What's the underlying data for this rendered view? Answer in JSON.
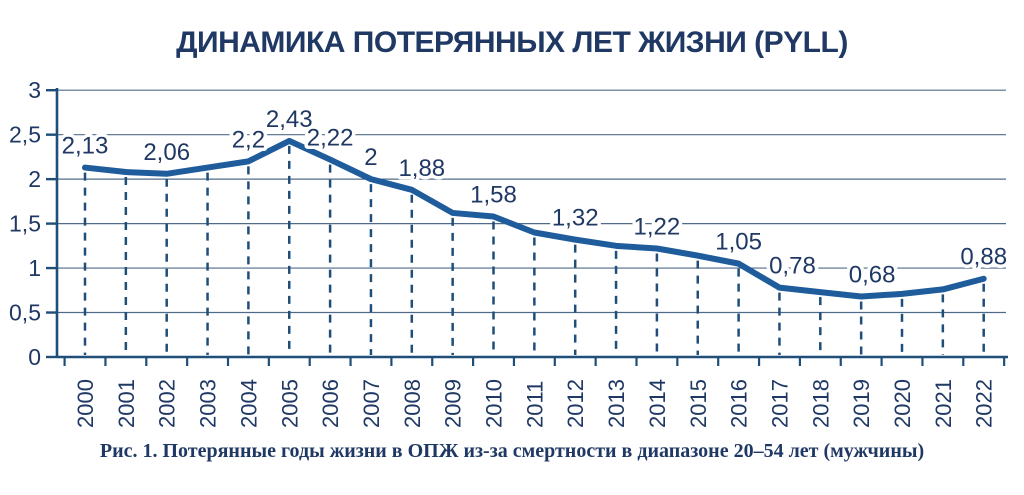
{
  "title": "ДИНАМИКА ПОТЕРЯННЫХ ЛЕТ ЖИЗНИ (PYLL)",
  "caption": "Рис. 1. Потерянные годы жизни в ОПЖ из-за смертности в диапазоне 20–54 лет (мужчины)",
  "chart_data": {
    "type": "line",
    "title": "ДИНАМИКА ПОТЕРЯННЫХ ЛЕТ ЖИЗНИ (PYLL)",
    "x": [
      2000,
      2001,
      2002,
      2003,
      2004,
      2005,
      2006,
      2007,
      2008,
      2009,
      2010,
      2011,
      2012,
      2013,
      2014,
      2015,
      2016,
      2017,
      2018,
      2019,
      2020,
      2021,
      2022
    ],
    "values": [
      2.13,
      2.08,
      2.06,
      2.13,
      2.2,
      2.43,
      2.22,
      2.0,
      1.88,
      1.62,
      1.58,
      1.4,
      1.32,
      1.25,
      1.22,
      1.14,
      1.05,
      0.78,
      0.73,
      0.68,
      0.71,
      0.76,
      0.88
    ],
    "point_labels": [
      "2,13",
      "",
      "2,06",
      "",
      "2,2",
      "2,43",
      "2,22",
      "2",
      "1,88",
      "",
      "1,58",
      "",
      "1,32",
      "",
      "1,22",
      "",
      "1,05",
      "0,78",
      "",
      "0,68",
      "",
      "",
      "0,88"
    ],
    "xlabel": "",
    "ylabel": "",
    "ylim": [
      0,
      3
    ],
    "yticks": [
      0,
      0.5,
      1,
      1.5,
      2,
      2.5,
      3
    ],
    "ytick_labels": [
      "0",
      "0,5",
      "1",
      "1,5",
      "2",
      "2,5",
      "3"
    ],
    "grid": true,
    "legend": "none",
    "markers": "none",
    "drop_lines": "dashed vertical from each point to x-axis"
  },
  "colors": {
    "text": "#1F3864",
    "line": "#1E5C9B",
    "drop_line": "#1F4E79",
    "grid": "#3E5C7E",
    "axis": "#1F4E79",
    "background": "#FFFFFF"
  }
}
